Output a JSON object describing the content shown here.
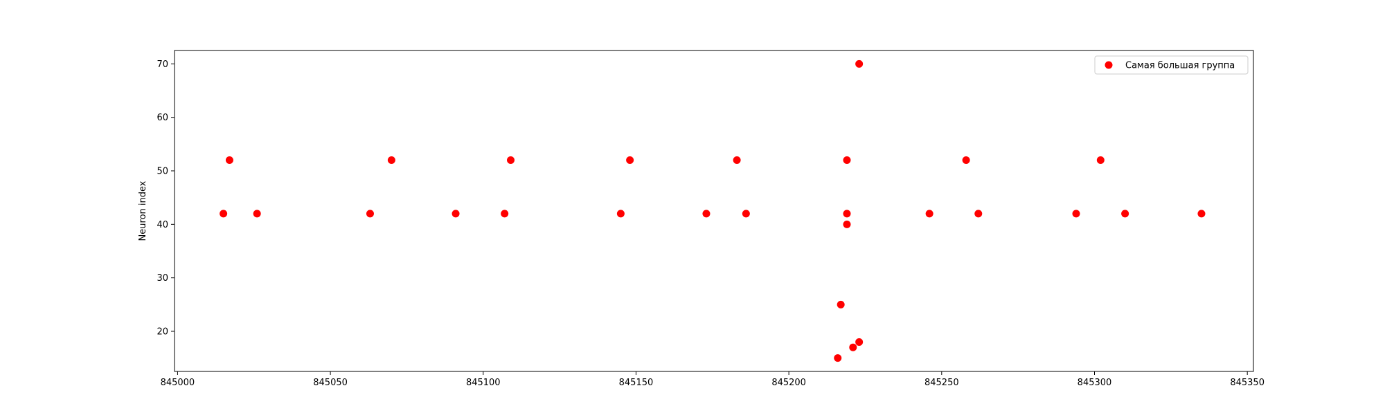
{
  "chart_data": {
    "type": "scatter",
    "title": "",
    "xlabel": "",
    "ylabel": "Neuron index",
    "xlim": [
      844999,
      845352
    ],
    "ylim": [
      12.5,
      72.5
    ],
    "xticks": [
      845000,
      845050,
      845100,
      845150,
      845200,
      845250,
      845300,
      845350
    ],
    "yticks": [
      20,
      30,
      40,
      50,
      60,
      70
    ],
    "grid": false,
    "legend_position": "top-right",
    "series": [
      {
        "name": "Самая большая группа",
        "color": "#ff0000",
        "marker": "circle",
        "points": [
          {
            "x": 845015,
            "y": 42
          },
          {
            "x": 845017,
            "y": 52
          },
          {
            "x": 845026,
            "y": 42
          },
          {
            "x": 845063,
            "y": 42
          },
          {
            "x": 845070,
            "y": 52
          },
          {
            "x": 845091,
            "y": 42
          },
          {
            "x": 845107,
            "y": 42
          },
          {
            "x": 845109,
            "y": 52
          },
          {
            "x": 845145,
            "y": 42
          },
          {
            "x": 845148,
            "y": 52
          },
          {
            "x": 845173,
            "y": 42
          },
          {
            "x": 845183,
            "y": 52
          },
          {
            "x": 845186,
            "y": 42
          },
          {
            "x": 845216,
            "y": 15
          },
          {
            "x": 845217,
            "y": 25
          },
          {
            "x": 845219,
            "y": 40
          },
          {
            "x": 845219,
            "y": 42
          },
          {
            "x": 845219,
            "y": 52
          },
          {
            "x": 845221,
            "y": 17
          },
          {
            "x": 845223,
            "y": 70
          },
          {
            "x": 845223,
            "y": 18
          },
          {
            "x": 845246,
            "y": 42
          },
          {
            "x": 845258,
            "y": 52
          },
          {
            "x": 845262,
            "y": 42
          },
          {
            "x": 845294,
            "y": 42
          },
          {
            "x": 845302,
            "y": 52
          },
          {
            "x": 845310,
            "y": 42
          },
          {
            "x": 845335,
            "y": 42
          }
        ]
      }
    ]
  }
}
